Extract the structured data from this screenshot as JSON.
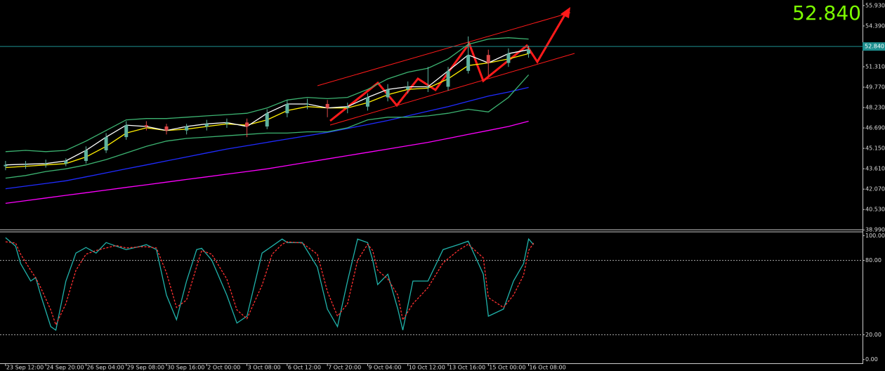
{
  "chart_data": [
    {
      "type": "candlestick",
      "x": [
        0,
        4,
        8,
        12,
        16,
        20,
        24,
        28,
        32,
        36,
        40,
        44,
        48,
        52,
        56,
        60,
        64,
        68,
        72,
        76,
        80,
        84,
        88,
        92,
        96,
        100,
        104
      ],
      "open": [
        43.8,
        43.9,
        43.95,
        44.0,
        44.2,
        45.0,
        46.0,
        46.9,
        46.8,
        46.5,
        46.8,
        47.0,
        47.1,
        46.8,
        47.8,
        48.5,
        48.5,
        48.2,
        48.3,
        49.0,
        49.6,
        49.8,
        49.8,
        51.0,
        52.2,
        51.6,
        52.3
      ],
      "high": [
        44.2,
        44.2,
        44.3,
        44.4,
        45.3,
        46.3,
        47.2,
        47.2,
        47.0,
        47.0,
        47.3,
        47.4,
        47.4,
        48.1,
        48.8,
        48.9,
        48.8,
        48.6,
        49.3,
        50.0,
        50.2,
        51.3,
        51.3,
        53.6,
        52.6,
        52.7,
        52.9
      ],
      "low": [
        43.5,
        43.6,
        43.7,
        43.8,
        44.0,
        44.8,
        45.8,
        46.5,
        46.2,
        46.2,
        46.5,
        46.7,
        46.0,
        46.6,
        47.5,
        48.1,
        47.5,
        47.8,
        48.0,
        48.7,
        49.3,
        49.4,
        49.5,
        50.8,
        50.6,
        51.3,
        52.0
      ],
      "close": [
        43.9,
        43.95,
        44.0,
        44.2,
        45.0,
        46.0,
        46.9,
        46.8,
        46.5,
        46.8,
        47.0,
        47.1,
        46.8,
        47.8,
        48.5,
        48.5,
        48.2,
        48.3,
        49.0,
        49.6,
        49.8,
        49.8,
        51.0,
        52.2,
        51.6,
        52.3,
        52.6
      ],
      "up_color": "#5fb4a0",
      "down_color": "#e04848",
      "series": [
        {
          "color": "#ff00ff",
          "values": [
            41.0,
            41.2,
            41.4,
            41.6,
            41.8,
            42.0,
            42.2,
            42.4,
            42.6,
            42.8,
            43.0,
            43.2,
            43.4,
            43.6,
            43.85,
            44.1,
            44.35,
            44.6,
            44.85,
            45.1,
            45.35,
            45.6,
            45.9,
            46.2,
            46.5,
            46.8,
            47.2
          ]
        },
        {
          "color": "#1f2bff",
          "values": [
            42.1,
            42.3,
            42.5,
            42.7,
            43.0,
            43.3,
            43.6,
            43.9,
            44.2,
            44.5,
            44.8,
            45.1,
            45.35,
            45.6,
            45.85,
            46.1,
            46.35,
            46.65,
            46.95,
            47.25,
            47.6,
            47.95,
            48.3,
            48.7,
            49.1,
            49.4,
            49.75
          ]
        },
        {
          "color": "#3cb371",
          "values": [
            44.9,
            45.0,
            44.9,
            45.0,
            45.7,
            46.5,
            47.3,
            47.4,
            47.4,
            47.5,
            47.6,
            47.7,
            47.8,
            48.2,
            48.8,
            49.0,
            48.9,
            49.0,
            49.6,
            50.4,
            50.9,
            51.2,
            51.9,
            53.0,
            53.4,
            53.5,
            53.4
          ]
        },
        {
          "color": "#3cb371",
          "values": [
            42.9,
            43.1,
            43.4,
            43.6,
            43.9,
            44.3,
            44.8,
            45.3,
            45.7,
            45.9,
            46.0,
            46.1,
            46.2,
            46.3,
            46.3,
            46.4,
            46.4,
            46.7,
            47.3,
            47.5,
            47.5,
            47.6,
            47.8,
            48.1,
            47.9,
            49.0,
            50.7
          ]
        },
        {
          "color": "#ffee00",
          "values": [
            43.7,
            43.8,
            43.9,
            44.0,
            44.5,
            45.3,
            46.3,
            46.7,
            46.5,
            46.6,
            46.8,
            47.0,
            46.9,
            47.3,
            48.0,
            48.3,
            48.2,
            48.2,
            48.6,
            49.2,
            49.6,
            49.7,
            50.4,
            51.4,
            51.6,
            51.9,
            52.3
          ]
        },
        {
          "color": "#ffffff",
          "values": [
            43.9,
            43.95,
            44.0,
            44.2,
            45.0,
            46.0,
            46.9,
            46.8,
            46.5,
            46.8,
            47.0,
            47.1,
            46.8,
            47.8,
            48.5,
            48.5,
            48.2,
            48.3,
            49.0,
            49.6,
            49.8,
            49.8,
            51.0,
            52.2,
            51.6,
            52.3,
            52.6
          ]
        }
      ],
      "xlim": [
        -1.1,
        170.4
      ],
      "ylim": [
        38.95,
        56.35
      ],
      "yticks": [
        {
          "value": 55.93,
          "label": "55.930"
        },
        {
          "value": 54.39,
          "label": "54.390"
        },
        {
          "value": 51.31,
          "label": "51.310"
        },
        {
          "value": 49.77,
          "label": "49.770"
        },
        {
          "value": 48.23,
          "label": "48.230"
        },
        {
          "value": 46.69,
          "label": "46.690"
        },
        {
          "value": 45.15,
          "label": "45.150"
        },
        {
          "value": 43.61,
          "label": "43.610"
        },
        {
          "value": 42.07,
          "label": "42.070"
        },
        {
          "value": 40.53,
          "label": "40.530"
        },
        {
          "value": 38.99,
          "label": "38.990"
        }
      ],
      "price_line": {
        "value": 52.84,
        "label": "52.840",
        "color": "#1e8f8f"
      }
    },
    {
      "type": "line",
      "x": [
        0,
        2,
        3,
        5,
        6,
        7,
        9,
        10,
        12,
        14,
        16,
        18,
        20,
        22,
        24,
        27,
        28,
        30,
        32,
        34,
        36,
        38,
        39,
        41,
        44,
        46,
        48,
        51,
        53,
        55,
        56,
        59,
        62,
        64,
        66,
        68,
        70,
        72,
        73,
        74,
        76,
        78,
        79,
        81,
        84,
        87,
        90,
        92,
        95,
        96,
        99,
        101,
        103,
        104,
        105
      ],
      "series": [
        {
          "color": "#20b2aa",
          "dash": false,
          "values": [
            98.3,
            91.5,
            77.4,
            63.3,
            66.1,
            52.0,
            26.6,
            23.7,
            63.3,
            85.9,
            90.4,
            85.9,
            94.4,
            91.5,
            88.7,
            91.5,
            92.7,
            88.7,
            52.0,
            32.2,
            63.3,
            88.7,
            89.8,
            80.2,
            52.0,
            29.4,
            35.0,
            85.9,
            91.5,
            97.2,
            94.4,
            94.4,
            74.6,
            40.7,
            26.6,
            63.3,
            97.2,
            94.4,
            80.2,
            60.5,
            68.9,
            40.7,
            23.7,
            63.3,
            63.3,
            88.7,
            92.7,
            95.5,
            68.9,
            35.0,
            40.7,
            63.3,
            77.4,
            97.2,
            92.7
          ]
        },
        {
          "color": "#ff3030",
          "dash": true,
          "values": [
            95,
            94,
            85,
            72,
            66,
            58,
            40,
            28,
            45,
            72,
            85,
            88,
            90,
            92,
            90,
            91,
            91,
            90,
            70,
            42,
            48,
            75,
            88,
            85,
            65,
            40,
            33,
            60,
            85,
            93,
            95,
            94,
            85,
            55,
            35,
            45,
            80,
            93,
            88,
            72,
            65,
            52,
            32,
            45,
            58,
            78,
            88,
            93,
            82,
            50,
            42,
            52,
            68,
            88,
            94
          ]
        }
      ],
      "xlim": [
        -1.1,
        170.4
      ],
      "ylim": [
        -3,
        103
      ],
      "yticks": [
        {
          "value": 100,
          "label": "100.00"
        },
        {
          "value": 80,
          "label": "80.00"
        },
        {
          "value": 20,
          "label": "20.00"
        },
        {
          "value": 0,
          "label": "0.00"
        }
      ],
      "levels": [
        80,
        20
      ],
      "xticks": [
        {
          "value": 0,
          "label": "23 Sep 12:00"
        },
        {
          "value": 8,
          "label": "24 Sep 20:00"
        },
        {
          "value": 16,
          "label": "26 Sep 04:00"
        },
        {
          "value": 24,
          "label": "29 Sep 08:00"
        },
        {
          "value": 32,
          "label": "30 Sep 16:00"
        },
        {
          "value": 40,
          "label": "2 Oct 00:00"
        },
        {
          "value": 48,
          "label": "3 Oct 08:00"
        },
        {
          "value": 56,
          "label": "6 Oct 12:00"
        },
        {
          "value": 64,
          "label": "7 Oct 20:00"
        },
        {
          "value": 72,
          "label": "9 Oct 04:00"
        },
        {
          "value": 80,
          "label": "10 Oct 12:00"
        },
        {
          "value": 88,
          "label": "13 Oct 16:00"
        },
        {
          "value": 96,
          "label": "15 Oct 00:00"
        },
        {
          "value": 104,
          "label": "16 Oct 08:00"
        }
      ]
    }
  ]
}
